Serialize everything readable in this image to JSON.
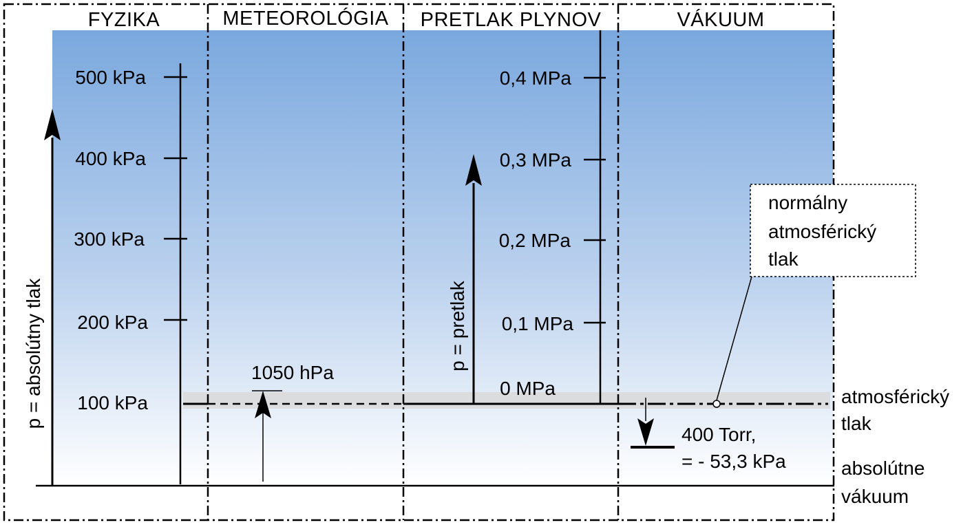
{
  "headers": {
    "physics": "FYZIKA",
    "meteorology": "METEOROLÓGIA",
    "gas_overpressure": "PRETLAK PLYNOV",
    "vacuum": "VÁKUUM"
  },
  "absolute_scale": {
    "axis_label": "p = absolútny tlak",
    "ticks": [
      "500 kPa",
      "400 kPa",
      "300 kPa",
      "200 kPa",
      "100 kPa"
    ]
  },
  "overpressure_scale": {
    "axis_label": "p = pretlak",
    "ticks": [
      "0,4 MPa",
      "0,3 MPa",
      "0,2 MPa",
      "0,1 MPa",
      "0 MPa"
    ]
  },
  "meteorology_value": "1050 hPa",
  "callout": {
    "line1": "normálny",
    "line2": "atmosférický",
    "line3": "tlak"
  },
  "atmospheric_label": {
    "line1": "atmosférický",
    "line2": "tlak"
  },
  "vacuum_value": {
    "line1": "400 Torr,",
    "line2": "= - 53,3 kPa"
  },
  "absolute_vacuum_label": {
    "line1": "absolútne",
    "line2": "vákuum"
  },
  "colors": {
    "gradient_top": "#7aa8de",
    "gradient_bottom": "#ffffff",
    "atmospheric_band": "#d9d9d9",
    "line": "#000000"
  }
}
